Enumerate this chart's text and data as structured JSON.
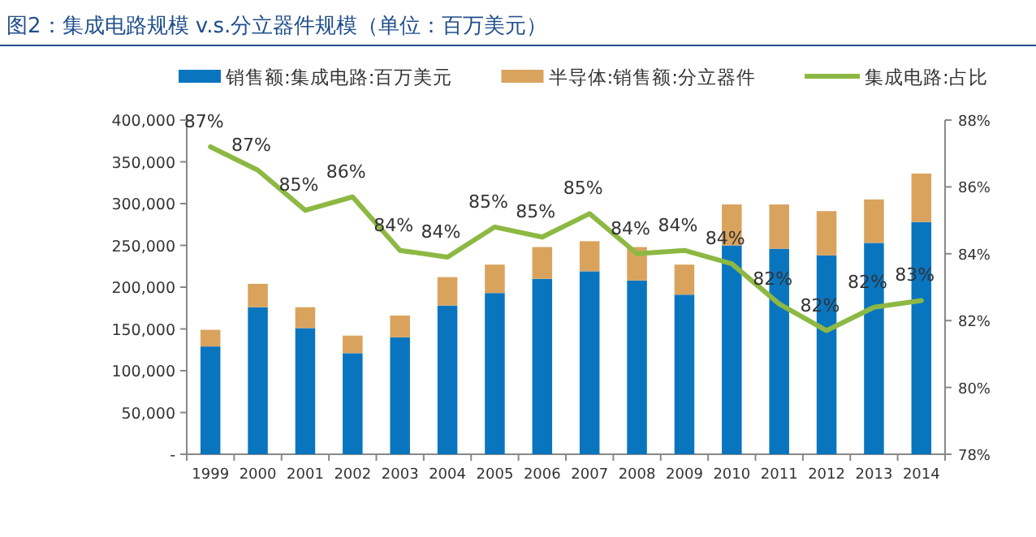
{
  "chart_data": {
    "type": "bar",
    "title": "图2：集成电路规模 v.s.分立器件规模（单位：百万美元）",
    "categories": [
      "1999",
      "2000",
      "2001",
      "2002",
      "2003",
      "2004",
      "2005",
      "2006",
      "2007",
      "2008",
      "2009",
      "2010",
      "2011",
      "2012",
      "2013",
      "2014"
    ],
    "stacked": true,
    "legend": "top",
    "series": [
      {
        "name": "销售额:集成电路:百万美元",
        "color": "#0a75bf",
        "values": [
          129000,
          176000,
          151000,
          121000,
          140000,
          178000,
          193000,
          210000,
          219000,
          208000,
          191000,
          250000,
          246000,
          238000,
          253000,
          278000
        ]
      },
      {
        "name": "半导体:销售额:分立器件",
        "color": "#d9a35e",
        "values": [
          20000,
          28000,
          25000,
          21000,
          26000,
          34000,
          34000,
          38000,
          36000,
          40000,
          36000,
          49000,
          53000,
          53000,
          52000,
          58000
        ]
      },
      {
        "name": "集成电路:占比",
        "type": "line",
        "axis": "y2",
        "color": "#8db843",
        "values": [
          87.2,
          86.5,
          85.3,
          85.7,
          84.1,
          83.9,
          84.8,
          84.5,
          85.2,
          84.0,
          84.1,
          83.7,
          82.5,
          81.7,
          82.4,
          82.6
        ],
        "value_labels": [
          "87%",
          "87%",
          "85%",
          "86%",
          "84%",
          "84%",
          "85%",
          "85%",
          "85%",
          "84%",
          "84%",
          "84%",
          "82%",
          "82%",
          "82%",
          "83%"
        ]
      }
    ],
    "ylim": [
      0,
      400000
    ],
    "yticks": [
      {
        "value": 0,
        "label": "-"
      },
      {
        "value": 50000,
        "label": "50,000"
      },
      {
        "value": 100000,
        "label": "100,000"
      },
      {
        "value": 150000,
        "label": "150,000"
      },
      {
        "value": 200000,
        "label": "200,000"
      },
      {
        "value": 250000,
        "label": "250,000"
      },
      {
        "value": 300000,
        "label": "300,000"
      },
      {
        "value": 350000,
        "label": "350,000"
      },
      {
        "value": 400000,
        "label": "400,000"
      }
    ],
    "y2lim": [
      78,
      88
    ],
    "y2ticks": [
      {
        "value": 78,
        "label": "78%"
      },
      {
        "value": 80,
        "label": "80%"
      },
      {
        "value": 82,
        "label": "82%"
      },
      {
        "value": 84,
        "label": "84%"
      },
      {
        "value": 86,
        "label": "86%"
      },
      {
        "value": 88,
        "label": "88%"
      }
    ]
  }
}
